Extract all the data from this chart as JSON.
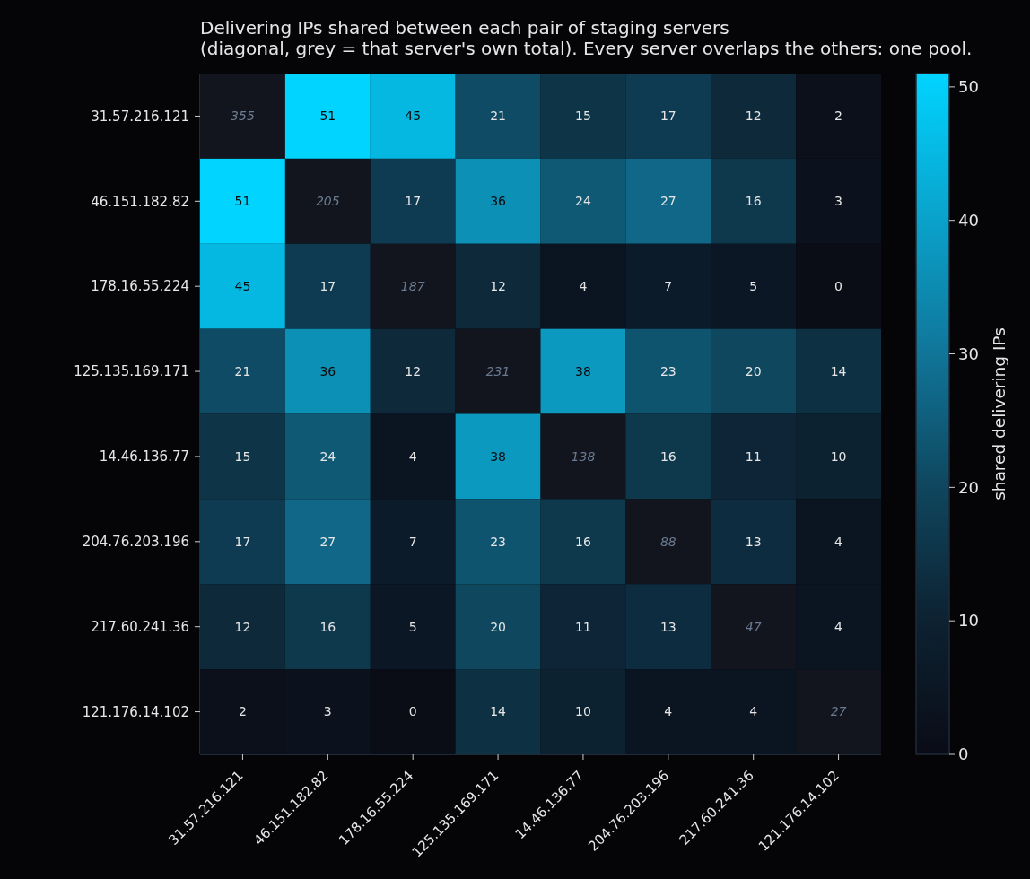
{
  "chart_data": {
    "type": "heatmap",
    "title": "Delivering IPs shared between each pair of staging servers\n(diagonal, grey = that server's own total). Every server overlaps the others: one pool.",
    "categories": [
      "31.57.216.121",
      "46.151.182.82",
      "178.16.55.224",
      "125.135.169.171",
      "14.46.136.77",
      "204.76.203.196",
      "217.60.241.36",
      "121.176.14.102"
    ],
    "y_categories": [
      "31.57.216.121",
      "46.151.182.82",
      "178.16.55.224",
      "125.135.169.171",
      "14.46.136.77",
      "204.76.203.196",
      "217.60.241.36",
      "121.176.14.102"
    ],
    "cells": [
      [
        null,
        51,
        45,
        21,
        15,
        17,
        12,
        2
      ],
      [
        51,
        null,
        17,
        36,
        24,
        27,
        16,
        3
      ],
      [
        45,
        17,
        null,
        12,
        4,
        7,
        5,
        0
      ],
      [
        21,
        36,
        12,
        null,
        38,
        23,
        20,
        14
      ],
      [
        15,
        24,
        4,
        38,
        null,
        16,
        11,
        10
      ],
      [
        17,
        27,
        7,
        23,
        16,
        null,
        13,
        4
      ],
      [
        12,
        16,
        5,
        20,
        11,
        13,
        null,
        4
      ],
      [
        2,
        3,
        0,
        14,
        10,
        4,
        4,
        null
      ]
    ],
    "cell_labels": [
      [
        "355",
        "51",
        "45",
        "21",
        "15",
        "17",
        "12",
        "2"
      ],
      [
        "51",
        "205",
        "17",
        "36",
        "24",
        "27",
        "16",
        "3"
      ],
      [
        "45",
        "17",
        "187",
        "12",
        "4",
        "7",
        "5",
        "0"
      ],
      [
        "21",
        "36",
        "12",
        "231",
        "38",
        "23",
        "20",
        "14"
      ],
      [
        "15",
        "24",
        "4",
        "38",
        "138",
        "16",
        "11",
        "10"
      ],
      [
        "17",
        "27",
        "7",
        "23",
        "16",
        "88",
        "13",
        "4"
      ],
      [
        "12",
        "16",
        "5",
        "20",
        "11",
        "13",
        "47",
        "4"
      ],
      [
        "2",
        "3",
        "0",
        "14",
        "10",
        "4",
        "4",
        "27"
      ]
    ],
    "clabel": "shared delivering IPs",
    "clim": [
      0,
      51
    ],
    "cticks": [
      0,
      10,
      20,
      30,
      40,
      50
    ]
  }
}
